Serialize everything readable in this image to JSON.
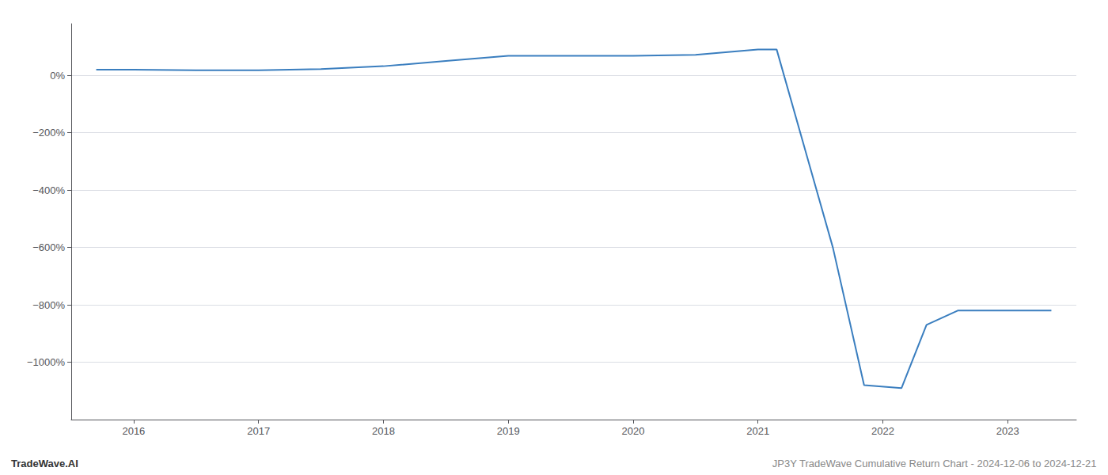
{
  "chart_data": {
    "type": "line",
    "annotations": [
      "TradeWave.AI",
      "JP3Y TradeWave Cumulative Return Chart - 2024-12-06 to 2024-12-21"
    ],
    "x": [
      2015.7,
      2016.0,
      2016.5,
      2017.0,
      2017.5,
      2018.0,
      2018.5,
      2019.0,
      2019.5,
      2020.0,
      2020.5,
      2021.0,
      2021.15,
      2021.6,
      2021.85,
      2022.15,
      2022.35,
      2022.6,
      2022.9,
      2023.1,
      2023.35
    ],
    "values": [
      20,
      20,
      18,
      18,
      22,
      32,
      50,
      68,
      68,
      68,
      72,
      90,
      90,
      -600,
      -1080,
      -1090,
      -870,
      -820,
      -820,
      -820,
      -820
    ],
    "color": "#3a7ebf",
    "xlim": [
      2015.5,
      2023.55
    ],
    "ylim": [
      -1200,
      180
    ],
    "xticks": [
      2016,
      2017,
      2018,
      2019,
      2020,
      2021,
      2022,
      2023
    ],
    "yticks": [
      {
        "value": 0,
        "label": "0%"
      },
      {
        "value": -200,
        "label": "−200%"
      },
      {
        "value": -400,
        "label": "−400%"
      },
      {
        "value": -600,
        "label": "−600%"
      },
      {
        "value": -800,
        "label": "−800%"
      },
      {
        "value": -1000,
        "label": "−1000%"
      }
    ],
    "grid": true
  }
}
